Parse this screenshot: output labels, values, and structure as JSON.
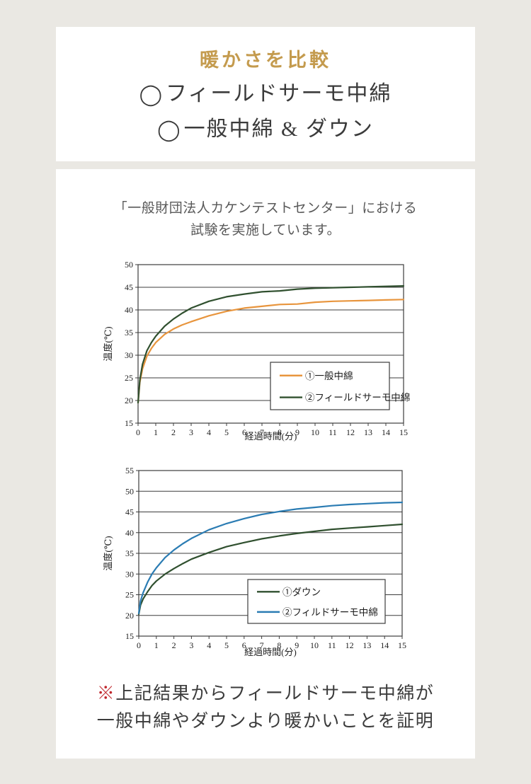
{
  "colors": {
    "page_bg": "#eae8e3",
    "card_bg": "#ffffff",
    "title_gold": "#c49b4e",
    "text_dark": "#3b3b3b",
    "text_gray": "#595959",
    "note_red": "#c0272d",
    "chart_axis": "#3c3c3c"
  },
  "header_card": {
    "title": "暖かさを比較",
    "bullet": "◯",
    "items": [
      {
        "label": "フィールドサーモ中綿"
      },
      {
        "label": "一般中綿 & ダウン"
      }
    ]
  },
  "report_card": {
    "intro_line1": "「一般財団法人カケンテストセンター」における",
    "intro_line2": "試験を実施しています。",
    "conclusion_mark": "※",
    "conclusion_line1": "上記結果からフィールドサーモ中綿が",
    "conclusion_line2": "一般中綿やダウンより暖かいことを証明"
  },
  "chart_data": [
    {
      "type": "line",
      "title": "",
      "xlabel": "経過時間(分)",
      "ylabel": "温度(℃)",
      "xlim": [
        0,
        15
      ],
      "ylim": [
        15,
        50
      ],
      "xticks": [
        0,
        1,
        2,
        3,
        4,
        5,
        6,
        7,
        8,
        9,
        10,
        11,
        12,
        13,
        14,
        15
      ],
      "yticks": [
        15,
        20,
        25,
        30,
        35,
        40,
        45,
        50
      ],
      "grid": "horizontal",
      "legend_position": "inside-lower-right",
      "x": [
        0,
        0.1,
        0.25,
        0.5,
        0.75,
        1,
        1.5,
        2,
        2.5,
        3,
        4,
        5,
        6,
        7,
        8,
        9,
        10,
        11,
        12,
        13,
        14,
        15
      ],
      "series": [
        {
          "name": "①一般中綿",
          "color": "#e8953d",
          "values": [
            19.5,
            24,
            27,
            29.8,
            31.5,
            32.8,
            34.6,
            35.8,
            36.7,
            37.4,
            38.7,
            39.7,
            40.4,
            40.8,
            41.2,
            41.3,
            41.7,
            41.9,
            42,
            42.1,
            42.2,
            42.3
          ]
        },
        {
          "name": "②フィールドサーモ中綿",
          "color": "#30502f",
          "values": [
            19.5,
            24.5,
            28,
            31,
            32.8,
            34.2,
            36.4,
            38,
            39.3,
            40.4,
            41.9,
            42.9,
            43.5,
            44,
            44.2,
            44.6,
            44.8,
            44.9,
            45,
            45.1,
            45.2,
            45.3
          ]
        }
      ]
    },
    {
      "type": "line",
      "title": "",
      "xlabel": "経過時間(分)",
      "ylabel": "温度(℃)",
      "xlim": [
        0,
        15
      ],
      "ylim": [
        15,
        55
      ],
      "xticks": [
        0,
        1,
        2,
        3,
        4,
        5,
        6,
        7,
        8,
        9,
        10,
        11,
        12,
        13,
        14,
        15
      ],
      "yticks": [
        15,
        20,
        25,
        30,
        35,
        40,
        45,
        50,
        55
      ],
      "grid": "horizontal",
      "legend_position": "inside-lower-right",
      "x": [
        0,
        0.1,
        0.25,
        0.5,
        0.75,
        1,
        1.5,
        2,
        2.5,
        3,
        4,
        5,
        6,
        7,
        8,
        9,
        10,
        11,
        12,
        13,
        14,
        15
      ],
      "series": [
        {
          "name": "①ダウン",
          "color": "#30502f",
          "values": [
            20.3,
            22.5,
            24,
            25.7,
            27.2,
            28.3,
            30,
            31.3,
            32.5,
            33.6,
            35.2,
            36.6,
            37.6,
            38.5,
            39.2,
            39.8,
            40.3,
            40.8,
            41.1,
            41.4,
            41.7,
            42
          ]
        },
        {
          "name": "②フィルドサーモ中綿",
          "color": "#2b7cb3",
          "values": [
            20.5,
            23.5,
            25.5,
            28,
            30,
            31.5,
            34,
            35.8,
            37.3,
            38.6,
            40.7,
            42.2,
            43.4,
            44.4,
            45.1,
            45.7,
            46.1,
            46.5,
            46.8,
            47,
            47.2,
            47.3
          ]
        }
      ]
    }
  ]
}
